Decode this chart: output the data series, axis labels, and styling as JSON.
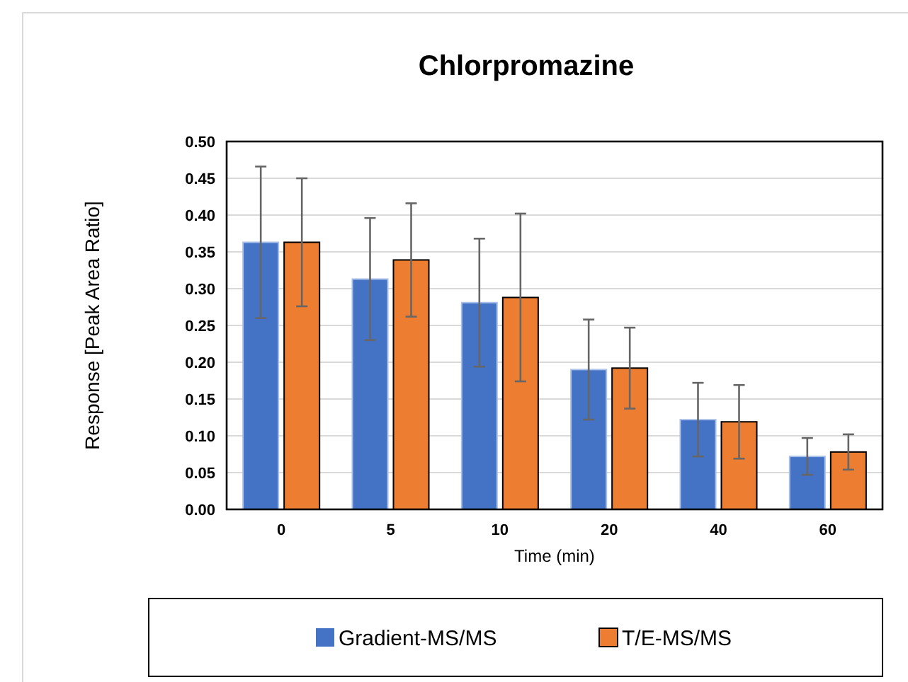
{
  "chart_data": {
    "type": "bar",
    "title": "Chlorpromazine",
    "xlabel": "Time (min)",
    "ylabel": "Response [Peak Area Ratio]",
    "categories": [
      "0",
      "5",
      "10",
      "20",
      "40",
      "60"
    ],
    "series": [
      {
        "name": "Gradient-MS/MS",
        "color": "#4472c4",
        "values": [
          0.363,
          0.313,
          0.281,
          0.19,
          0.122,
          0.072
        ],
        "errors": [
          0.103,
          0.083,
          0.087,
          0.068,
          0.05,
          0.025
        ]
      },
      {
        "name": "T/E-MS/MS",
        "color": "#ed7d31",
        "values": [
          0.363,
          0.339,
          0.288,
          0.192,
          0.119,
          0.078
        ],
        "errors": [
          0.087,
          0.077,
          0.114,
          0.055,
          0.05,
          0.024
        ]
      }
    ],
    "ylim": [
      0,
      0.5
    ],
    "yticks": [
      {
        "value": 0,
        "label": "0.00"
      },
      {
        "value": 0.05,
        "label": "0.05"
      },
      {
        "value": 0.1,
        "label": "0.10"
      },
      {
        "value": 0.15,
        "label": "0.15"
      },
      {
        "value": 0.2,
        "label": "0.20"
      },
      {
        "value": 0.25,
        "label": "0.25"
      },
      {
        "value": 0.3,
        "label": "0.30"
      },
      {
        "value": 0.35,
        "label": "0.35"
      },
      {
        "value": 0.4,
        "label": "0.40"
      },
      {
        "value": 0.45,
        "label": "0.45"
      },
      {
        "value": 0.5,
        "label": "0.50"
      }
    ],
    "grid": "y",
    "legend": "bottom"
  }
}
